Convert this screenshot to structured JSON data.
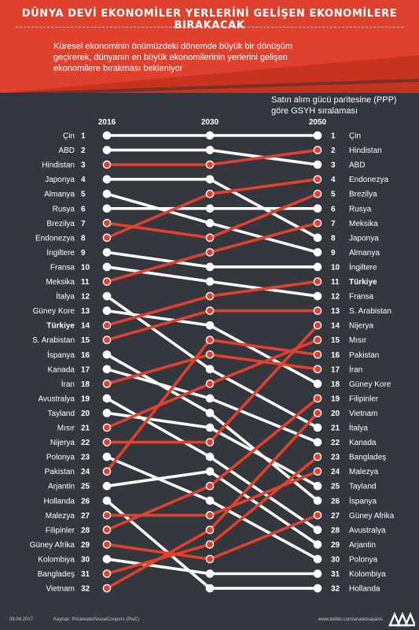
{
  "header": {
    "title": "DÜNYA DEVİ EKONOMİLER YERLERİNİ GELİŞEN EKONOMİLERE BIRAKACAK",
    "subtitle": "Küresel ekonominin önümüzdeki dönemde büyük bir dönüşüm geçirerek, dünyanın en büyük ekonomilerinin yerlerini gelişen ekonomilere bırakması bekleniyor",
    "note": "Satın alım gücü paritesine (PPP) göre GSYH sıralaması",
    "accent_color": "#e0412f"
  },
  "footer": {
    "date": "06.04.2017",
    "source": "Kaynak: PricewaterhouseCoopers (PwC)",
    "handle": "www.twitter.com/anadoluajansi"
  },
  "colors": {
    "background": "#34373d",
    "rising": "#e0412f",
    "falling": "#ffffff"
  },
  "chart_data": {
    "type": "slope",
    "years": [
      "2016",
      "2030",
      "2050"
    ],
    "highlight": "Türkiye",
    "left_labels": [
      "Çin",
      "ABD",
      "Hindistan",
      "Japonya",
      "Almanya",
      "Rusya",
      "Brezilya",
      "Endonezya",
      "İngiltere",
      "Fransa",
      "Meksika",
      "İtalya",
      "Güney Kore",
      "Türkiye",
      "S. Arabistan",
      "İspanya",
      "Kanada",
      "İran",
      "Avustralya",
      "Tayland",
      "Mısır",
      "Nijerya",
      "Polonya",
      "Pakistan",
      "Arjantin",
      "Hollanda",
      "Malezya",
      "Filipinler",
      "Güney Afrika",
      "Kolombiya",
      "Bangladeş",
      "Vietnam"
    ],
    "right_labels": [
      "Çin",
      "Hindistan",
      "ABD",
      "Endonezya",
      "Brezilya",
      "Rusya",
      "Meksika",
      "Japonya",
      "Almanya",
      "İngiltere",
      "Türkiye",
      "Fransa",
      "S. Arabistan",
      "Nijerya",
      "Mısır",
      "Pakistan",
      "İran",
      "Güney Kore",
      "Filipinler",
      "Vietnam",
      "İtalya",
      "Kanada",
      "Bangladeş",
      "Malezya",
      "Tayland",
      "İspanya",
      "Güney Afrika",
      "Avustralya",
      "Arjantin",
      "Polonya",
      "Kolombiya",
      "Hollanda"
    ],
    "ranks": [
      {
        "name": "Çin",
        "r2016": 1,
        "r2030": 1,
        "r2050": 1
      },
      {
        "name": "ABD",
        "r2016": 2,
        "r2030": 2,
        "r2050": 3
      },
      {
        "name": "Hindistan",
        "r2016": 3,
        "r2030": 3,
        "r2050": 2
      },
      {
        "name": "Japonya",
        "r2016": 4,
        "r2030": 4,
        "r2050": 8
      },
      {
        "name": "Almanya",
        "r2016": 5,
        "r2030": 7,
        "r2050": 9
      },
      {
        "name": "Rusya",
        "r2016": 6,
        "r2030": 6,
        "r2050": 6
      },
      {
        "name": "Brezilya",
        "r2016": 7,
        "r2030": 8,
        "r2050": 5
      },
      {
        "name": "Endonezya",
        "r2016": 8,
        "r2030": 5,
        "r2050": 4
      },
      {
        "name": "İngiltere",
        "r2016": 9,
        "r2030": 10,
        "r2050": 10
      },
      {
        "name": "Fransa",
        "r2016": 10,
        "r2030": 11,
        "r2050": 12
      },
      {
        "name": "Meksika",
        "r2016": 11,
        "r2030": 9,
        "r2050": 7
      },
      {
        "name": "İtalya",
        "r2016": 12,
        "r2030": 17,
        "r2050": 21
      },
      {
        "name": "Güney Kore",
        "r2016": 13,
        "r2030": 14,
        "r2050": 18
      },
      {
        "name": "Türkiye",
        "r2016": 14,
        "r2030": 12,
        "r2050": 11
      },
      {
        "name": "S. Arabistan",
        "r2016": 15,
        "r2030": 13,
        "r2050": 13
      },
      {
        "name": "İspanya",
        "r2016": 16,
        "r2030": 20,
        "r2050": 26
      },
      {
        "name": "Kanada",
        "r2016": 17,
        "r2030": 19,
        "r2050": 22
      },
      {
        "name": "İran",
        "r2016": 18,
        "r2030": 16,
        "r2050": 17
      },
      {
        "name": "Avustralya",
        "r2016": 19,
        "r2030": 23,
        "r2050": 28
      },
      {
        "name": "Tayland",
        "r2016": 20,
        "r2030": 21,
        "r2050": 25
      },
      {
        "name": "Mısır",
        "r2016": 21,
        "r2030": 18,
        "r2050": 15
      },
      {
        "name": "Nijerya",
        "r2016": 22,
        "r2030": 22,
        "r2050": 14
      },
      {
        "name": "Polonya",
        "r2016": 23,
        "r2030": 26,
        "r2050": 30
      },
      {
        "name": "Pakistan",
        "r2016": 24,
        "r2030": 15,
        "r2050": 16
      },
      {
        "name": "Arjantin",
        "r2016": 25,
        "r2030": 24,
        "r2050": 29
      },
      {
        "name": "Hollanda",
        "r2016": 26,
        "r2030": 32,
        "r2050": 32
      },
      {
        "name": "Malezya",
        "r2016": 27,
        "r2030": 27,
        "r2050": 24
      },
      {
        "name": "Filipinler",
        "r2016": 28,
        "r2030": 25,
        "r2050": 19
      },
      {
        "name": "Güney Afrika",
        "r2016": 29,
        "r2030": 30,
        "r2050": 27
      },
      {
        "name": "Kolombiya",
        "r2016": 30,
        "r2030": 31,
        "r2050": 31
      },
      {
        "name": "Bangladeş",
        "r2016": 31,
        "r2030": 29,
        "r2050": 23
      },
      {
        "name": "Vietnam",
        "r2016": 32,
        "r2030": 28,
        "r2050": 20
      }
    ]
  }
}
